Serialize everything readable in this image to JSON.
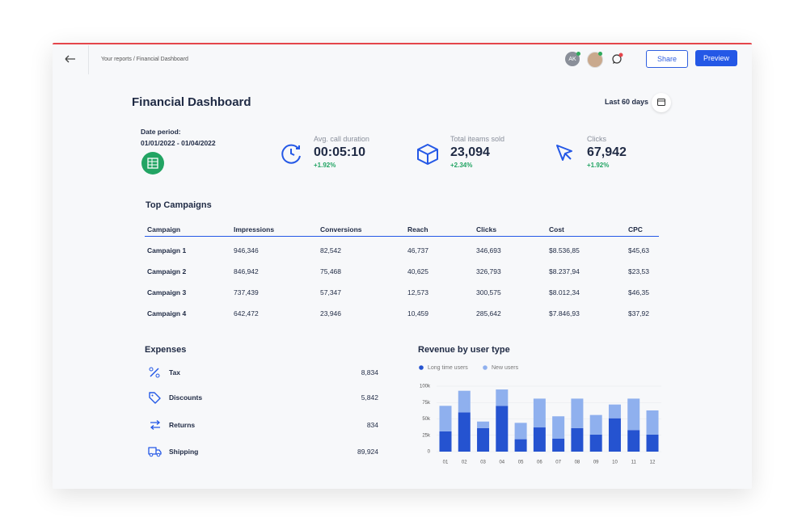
{
  "header": {
    "breadcrumb": "Your reports / Financial Dashboard",
    "avatar_initials": "AK",
    "share": "Share",
    "preview": "Preview"
  },
  "title": "Financial Dashboard",
  "date_range": "Last 60 days",
  "date_period": {
    "label": "Date period:",
    "value": "01/01/2022 - 01/04/2022"
  },
  "kpis": [
    {
      "label": "Avg. call duration",
      "value": "00:05:10",
      "change": "+1.92%"
    },
    {
      "label": "Total iteams sold",
      "value": "23,094",
      "change": "+2.34%"
    },
    {
      "label": "Clicks",
      "value": "67,942",
      "change": "+1.92%"
    }
  ],
  "campaigns": {
    "title": "Top Campaigns",
    "columns": [
      "Campaign",
      "Impressions",
      "Conversions",
      "Reach",
      "Clicks",
      "Cost",
      "CPC"
    ],
    "rows": [
      [
        "Campaign 1",
        "946,346",
        "82,542",
        "46,737",
        "346,693",
        "$8.536,85",
        "$45,63"
      ],
      [
        "Campaign 2",
        "846,942",
        "75,468",
        "40,625",
        "326,793",
        "$8.237,94",
        "$23,53"
      ],
      [
        "Campaign 3",
        "737,439",
        "57,347",
        "12,573",
        "300,575",
        "$8.012,34",
        "$46,35"
      ],
      [
        "Campaign 4",
        "642,472",
        "23,946",
        "10,459",
        "285,642",
        "$7.846,93",
        "$37,92"
      ]
    ]
  },
  "expenses": {
    "title": "Expenses",
    "items": [
      {
        "label": "Tax",
        "value": "8,834"
      },
      {
        "label": "Discounts",
        "value": "5,842"
      },
      {
        "label": "Returns",
        "value": "834"
      },
      {
        "label": "Shipping",
        "value": "89,924"
      }
    ]
  },
  "chart_data": {
    "type": "bar",
    "stacked": true,
    "title": "Revenue by user type",
    "categories": [
      "01",
      "02",
      "03",
      "04",
      "05",
      "06",
      "07",
      "08",
      "09",
      "10",
      "11",
      "12"
    ],
    "series": [
      {
        "name": "Long time users",
        "color": "#2553d0",
        "values": [
          31000,
          60000,
          36000,
          70000,
          19000,
          37000,
          20000,
          36000,
          26000,
          51000,
          33000,
          26000
        ]
      },
      {
        "name": "New users",
        "color": "#8fb0ee",
        "values": [
          39000,
          33000,
          10000,
          25000,
          25000,
          44000,
          34000,
          45000,
          30000,
          21000,
          48000,
          37000
        ]
      }
    ],
    "ylim": [
      0,
      100000
    ],
    "yticks": [
      0,
      {
        "value": 25000,
        "label": "25k"
      },
      {
        "value": 50000,
        "label": "50k"
      },
      {
        "value": 75000,
        "label": "75k"
      },
      {
        "value": 100000,
        "label": "100k"
      }
    ],
    "grid": true
  }
}
